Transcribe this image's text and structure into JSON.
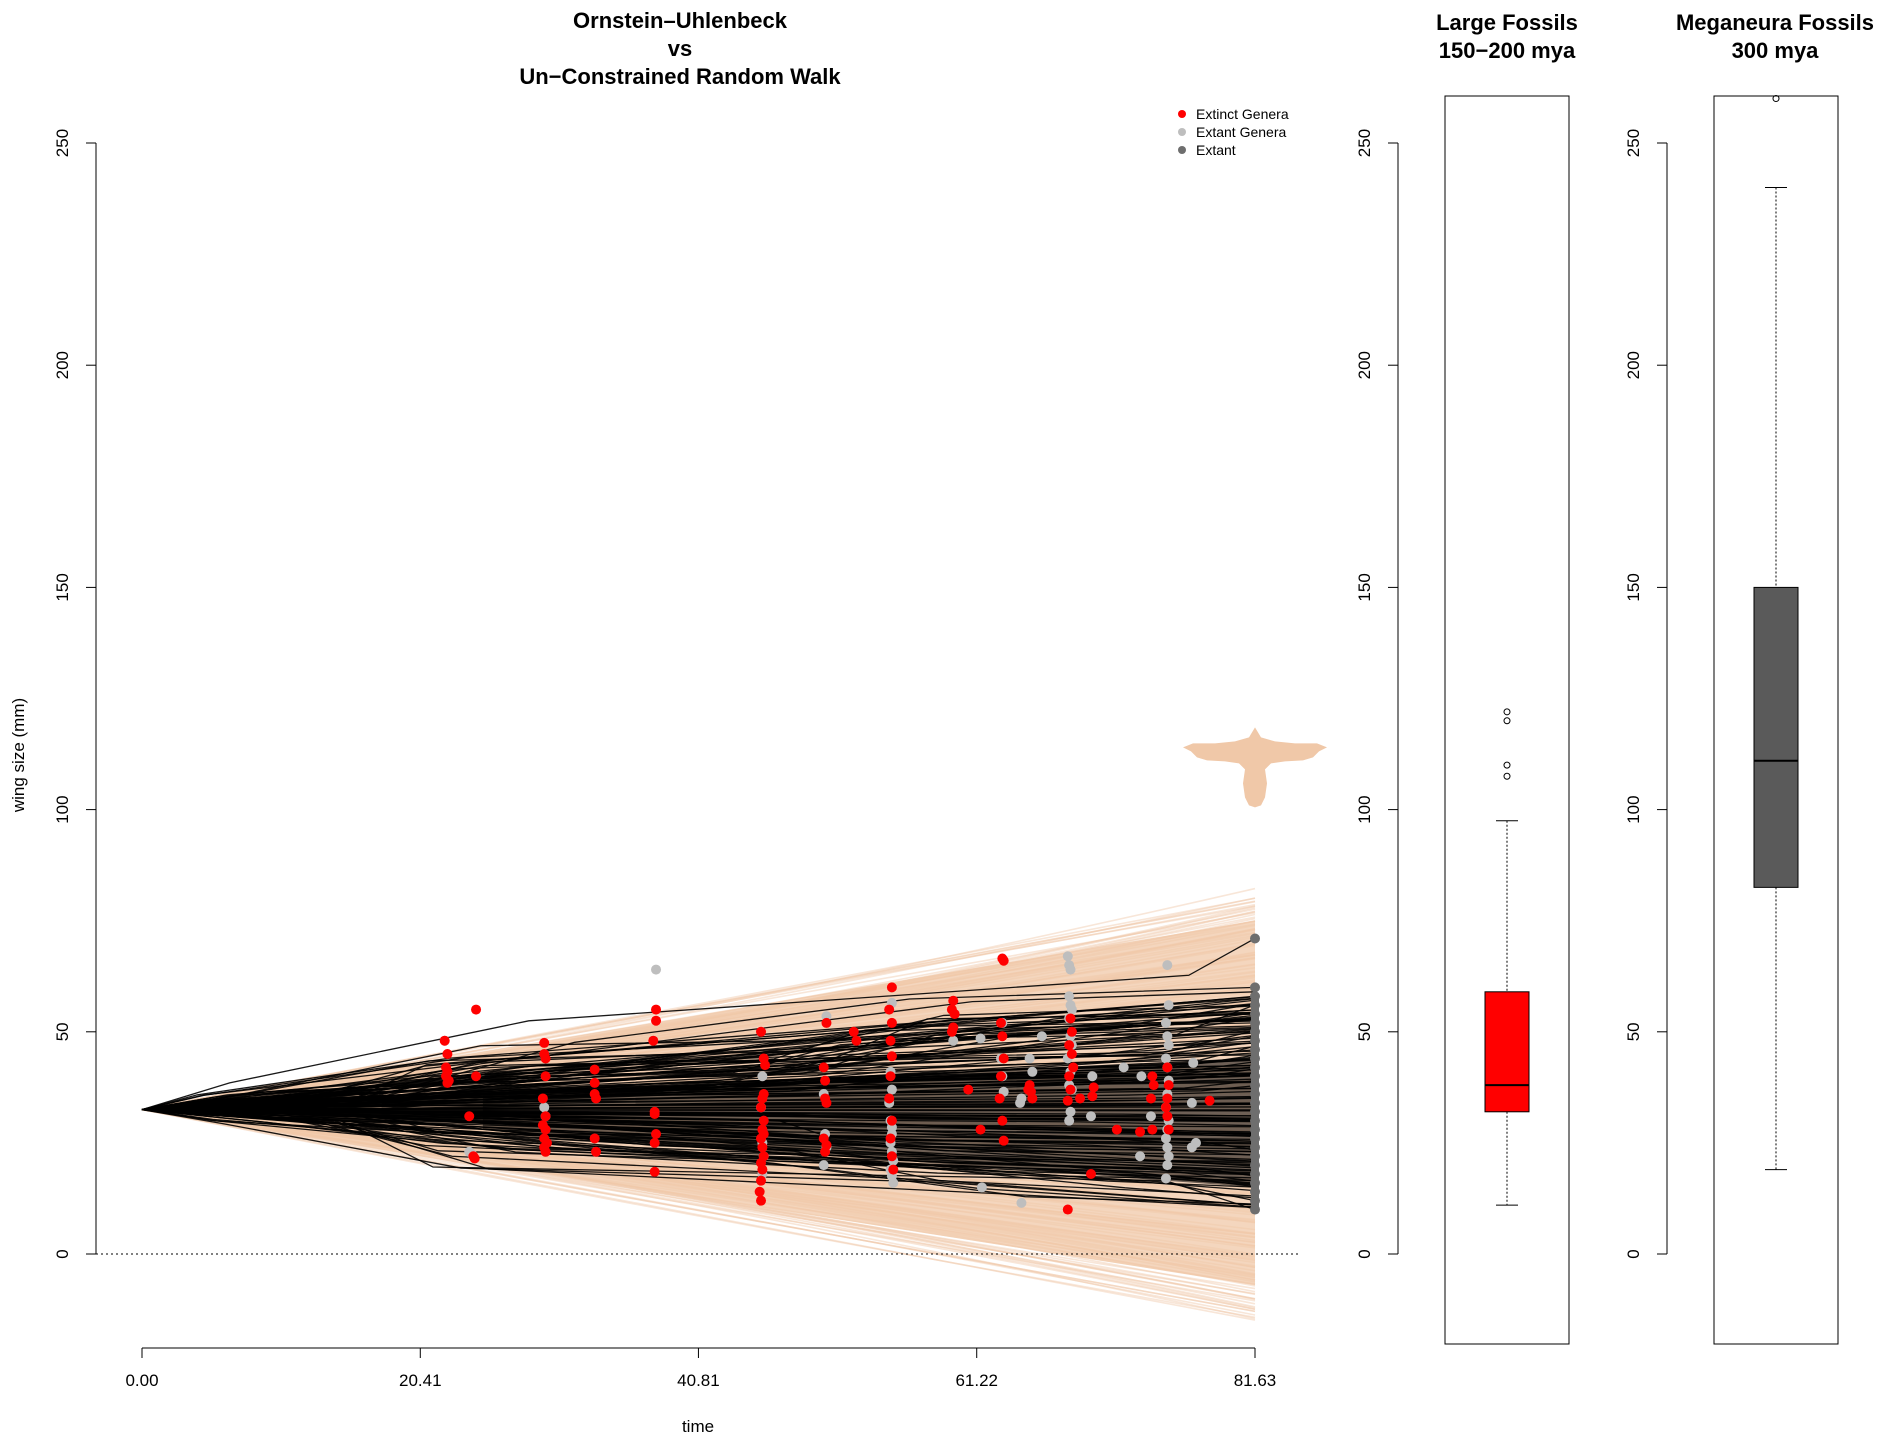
{
  "chart_data": [
    {
      "type": "line",
      "title_lines": [
        "Ornstein–Uhlenbeck",
        "vs",
        "Un−Constrained Random Walk"
      ],
      "xlabel": "time",
      "ylabel": "wing size (mm)",
      "xlim": [
        0,
        81.63
      ],
      "ylim": [
        -20,
        260
      ],
      "x_ticks": [
        "0.00",
        "20.41",
        "40.81",
        "61.22",
        "81.63"
      ],
      "x_tick_values": [
        0,
        20.41,
        40.81,
        61.22,
        81.63
      ],
      "y_ticks": [
        "0",
        "50",
        "100",
        "150",
        "200",
        "250"
      ],
      "y_tick_values": [
        0,
        50,
        100,
        150,
        200,
        250
      ],
      "reference_line": {
        "y": 0,
        "style": "dotted"
      },
      "colors": {
        "simulation": "#f0c8a8",
        "tree": "#000000",
        "extinct": "#ff0000",
        "extant_genera": "#bebebe",
        "extant": "#6e6e6e",
        "silhouette": "#f0c8a8"
      },
      "silhouette": {
        "icon": "bird-silhouette",
        "x": 81.63,
        "y": 105
      },
      "envelope": {
        "start_y": 32.5,
        "end_upper": 81,
        "end_lower": -15
      },
      "legend": {
        "position": "top-right",
        "entries": [
          {
            "label": "Extinct Genera",
            "color": "#ff0000"
          },
          {
            "label": "Extant Genera",
            "color": "#bebebe"
          },
          {
            "label": "Extant",
            "color": "#6e6e6e"
          }
        ]
      },
      "series": [
        {
          "name": "Extinct Genera",
          "points": [
            [
              22.2,
              48
            ],
            [
              22.4,
              45
            ],
            [
              22.3,
              42
            ],
            [
              22.4,
              41
            ],
            [
              22.3,
              40
            ],
            [
              22.5,
              39
            ],
            [
              22.4,
              38.5
            ],
            [
              24.0,
              31
            ],
            [
              24.3,
              22
            ],
            [
              24.4,
              21.5
            ],
            [
              24.5,
              40
            ],
            [
              24.5,
              55
            ],
            [
              29.5,
              47.5
            ],
            [
              29.5,
              45
            ],
            [
              29.6,
              44
            ],
            [
              29.6,
              40
            ],
            [
              29.4,
              35
            ],
            [
              29.6,
              31
            ],
            [
              29.4,
              29
            ],
            [
              29.6,
              28
            ],
            [
              29.5,
              26
            ],
            [
              29.7,
              25
            ],
            [
              29.5,
              24
            ],
            [
              29.6,
              23
            ],
            [
              33.2,
              41.5
            ],
            [
              33.2,
              38.5
            ],
            [
              33.2,
              36
            ],
            [
              33.3,
              35
            ],
            [
              33.2,
              26
            ],
            [
              33.3,
              23
            ],
            [
              37.7,
              55
            ],
            [
              37.7,
              52.5
            ],
            [
              37.5,
              48
            ],
            [
              37.6,
              32
            ],
            [
              37.6,
              31.5
            ],
            [
              37.7,
              27
            ],
            [
              37.6,
              25
            ],
            [
              37.6,
              18.5
            ],
            [
              45.4,
              50
            ],
            [
              45.6,
              44
            ],
            [
              45.7,
              42.5
            ],
            [
              45.6,
              36
            ],
            [
              45.5,
              35
            ],
            [
              45.4,
              33
            ],
            [
              45.6,
              30
            ],
            [
              45.5,
              28
            ],
            [
              45.6,
              27
            ],
            [
              45.4,
              26
            ],
            [
              45.5,
              24
            ],
            [
              45.6,
              22
            ],
            [
              45.4,
              20.5
            ],
            [
              45.5,
              19
            ],
            [
              45.4,
              16.5
            ],
            [
              45.3,
              14
            ],
            [
              45.4,
              12
            ],
            [
              50.2,
              52
            ],
            [
              50.0,
              42
            ],
            [
              50.1,
              39
            ],
            [
              50.1,
              35
            ],
            [
              50.2,
              34
            ],
            [
              50.0,
              26
            ],
            [
              50.2,
              24.5
            ],
            [
              50.1,
              23
            ],
            [
              52.2,
              50
            ],
            [
              52.4,
              48
            ],
            [
              55.0,
              60
            ],
            [
              54.8,
              55
            ],
            [
              55.0,
              52
            ],
            [
              54.9,
              48
            ],
            [
              55.0,
              44.5
            ],
            [
              54.9,
              40
            ],
            [
              54.8,
              35
            ],
            [
              55.0,
              30
            ],
            [
              54.9,
              26
            ],
            [
              55.0,
              22
            ],
            [
              55.1,
              19
            ],
            [
              59.5,
              57
            ],
            [
              59.4,
              55
            ],
            [
              59.6,
              54
            ],
            [
              59.5,
              51
            ],
            [
              59.4,
              50
            ],
            [
              60.6,
              37
            ],
            [
              61.5,
              28
            ],
            [
              63.1,
              66.5
            ],
            [
              63.2,
              66
            ],
            [
              63.0,
              52
            ],
            [
              63.1,
              49
            ],
            [
              63.2,
              44
            ],
            [
              63.0,
              40
            ],
            [
              62.9,
              35
            ],
            [
              63.1,
              30
            ],
            [
              63.2,
              25.5
            ],
            [
              65.1,
              38
            ],
            [
              65.0,
              37
            ],
            [
              65.2,
              36.5
            ],
            [
              65.3,
              35
            ],
            [
              68.1,
              53
            ],
            [
              68.2,
              50
            ],
            [
              68.0,
              47
            ],
            [
              68.2,
              45
            ],
            [
              68.3,
              42
            ],
            [
              68.0,
              40
            ],
            [
              68.1,
              37
            ],
            [
              67.9,
              34.5
            ],
            [
              67.9,
              10
            ],
            [
              68.8,
              35
            ],
            [
              69.8,
              37.5
            ],
            [
              69.7,
              35.5
            ],
            [
              69.6,
              18
            ],
            [
              71.5,
              28
            ],
            [
              73.2,
              27.5
            ],
            [
              74.1,
              40
            ],
            [
              74.2,
              38
            ],
            [
              74.0,
              35
            ],
            [
              74.1,
              28
            ],
            [
              75.2,
              42
            ],
            [
              75.3,
              38
            ],
            [
              75.2,
              35
            ],
            [
              75.1,
              33
            ],
            [
              75.2,
              31
            ],
            [
              75.3,
              28
            ],
            [
              78.3,
              34.5
            ]
          ]
        },
        {
          "name": "Extant Genera",
          "points": [
            [
              22.2,
              48
            ],
            [
              24.0,
              23
            ],
            [
              24.2,
              22.5
            ],
            [
              29.5,
              33
            ],
            [
              29.6,
              31
            ],
            [
              37.7,
              64
            ],
            [
              45.5,
              40
            ],
            [
              45.4,
              33
            ],
            [
              45.5,
              25
            ],
            [
              45.6,
              22
            ],
            [
              45.5,
              18
            ],
            [
              50.2,
              53.5
            ],
            [
              50.0,
              36
            ],
            [
              50.1,
              27
            ],
            [
              50.2,
              24
            ],
            [
              50.0,
              20
            ],
            [
              55.0,
              56.5
            ],
            [
              54.9,
              41
            ],
            [
              55.0,
              37
            ],
            [
              54.8,
              34
            ],
            [
              54.9,
              30
            ],
            [
              55.0,
              28.5
            ],
            [
              55.0,
              27
            ],
            [
              54.9,
              25
            ],
            [
              55.0,
              23
            ],
            [
              55.1,
              21
            ],
            [
              54.9,
              19
            ],
            [
              55.0,
              17.5
            ],
            [
              55.1,
              16
            ],
            [
              59.5,
              48
            ],
            [
              61.5,
              48.5
            ],
            [
              61.6,
              15
            ],
            [
              63.1,
              52
            ],
            [
              63.0,
              44
            ],
            [
              63.1,
              40
            ],
            [
              63.2,
              36.5
            ],
            [
              64.5,
              35
            ],
            [
              64.4,
              34
            ],
            [
              64.5,
              11.5
            ],
            [
              65.1,
              44
            ],
            [
              65.3,
              41
            ],
            [
              66.0,
              49
            ],
            [
              67.9,
              67
            ],
            [
              68.0,
              65
            ],
            [
              68.1,
              64
            ],
            [
              68.0,
              58
            ],
            [
              68.1,
              56
            ],
            [
              68.2,
              55
            ],
            [
              68.0,
              53
            ],
            [
              68.1,
              49
            ],
            [
              68.2,
              47
            ],
            [
              67.9,
              44
            ],
            [
              68.1,
              41
            ],
            [
              68.0,
              38
            ],
            [
              68.2,
              37
            ],
            [
              68.1,
              32
            ],
            [
              68.0,
              30
            ],
            [
              69.7,
              40
            ],
            [
              69.6,
              31
            ],
            [
              72.0,
              42
            ],
            [
              73.3,
              40
            ],
            [
              73.2,
              22
            ],
            [
              75.2,
              65
            ],
            [
              75.3,
              56
            ],
            [
              75.1,
              52
            ],
            [
              75.2,
              49
            ],
            [
              75.3,
              47
            ],
            [
              75.1,
              44
            ],
            [
              75.2,
              42
            ],
            [
              75.3,
              39
            ],
            [
              75.2,
              36
            ],
            [
              75.1,
              33
            ],
            [
              75.3,
              30
            ],
            [
              75.2,
              28
            ],
            [
              75.1,
              26
            ],
            [
              75.2,
              24
            ],
            [
              75.3,
              22
            ],
            [
              75.2,
              20
            ],
            [
              75.1,
              17
            ],
            [
              77.1,
              43
            ],
            [
              77.0,
              34
            ],
            [
              77.0,
              24
            ],
            [
              77.3,
              25
            ],
            [
              74.0,
              31
            ]
          ]
        },
        {
          "name": "Extant",
          "points": [
            [
              81.63,
              71
            ],
            [
              81.63,
              60
            ],
            [
              81.63,
              58
            ],
            [
              81.63,
              56
            ],
            [
              81.63,
              54
            ],
            [
              81.63,
              52
            ],
            [
              81.63,
              50
            ],
            [
              81.63,
              48
            ],
            [
              81.63,
              46
            ],
            [
              81.63,
              44
            ],
            [
              81.63,
              42
            ],
            [
              81.63,
              40
            ],
            [
              81.63,
              38
            ],
            [
              81.63,
              36
            ],
            [
              81.63,
              34
            ],
            [
              81.63,
              32
            ],
            [
              81.63,
              30
            ],
            [
              81.63,
              28
            ],
            [
              81.63,
              26
            ],
            [
              81.63,
              24
            ],
            [
              81.63,
              22
            ],
            [
              81.63,
              20
            ],
            [
              81.63,
              18
            ],
            [
              81.63,
              16
            ],
            [
              81.63,
              14
            ],
            [
              81.63,
              12
            ],
            [
              81.63,
              10
            ]
          ]
        }
      ]
    },
    {
      "type": "box",
      "title_lines": [
        "Large Fossils",
        "150−200 mya"
      ],
      "ylim": [
        -20,
        260
      ],
      "y_ticks": [
        "0",
        "50",
        "100",
        "150",
        "200",
        "250"
      ],
      "y_tick_values": [
        0,
        50,
        100,
        150,
        200,
        250
      ],
      "box": {
        "whisker_low": 11,
        "q1": 32,
        "median": 38,
        "q3": 59,
        "whisker_high": 97.5,
        "outliers": [
          107.5,
          110,
          120,
          122
        ]
      },
      "fill": "#ff0000"
    },
    {
      "type": "box",
      "title_lines": [
        "Meganeura Fossils",
        "300 mya"
      ],
      "ylim": [
        -20,
        260
      ],
      "y_ticks": [
        "0",
        "50",
        "100",
        "150",
        "200",
        "250"
      ],
      "y_tick_values": [
        0,
        50,
        100,
        150,
        200,
        250
      ],
      "box": {
        "whisker_low": 19,
        "q1": 82.5,
        "median": 111,
        "q3": 150,
        "whisker_high": 240,
        "outliers": [
          260
        ]
      },
      "fill": "#5a5a5a"
    }
  ]
}
